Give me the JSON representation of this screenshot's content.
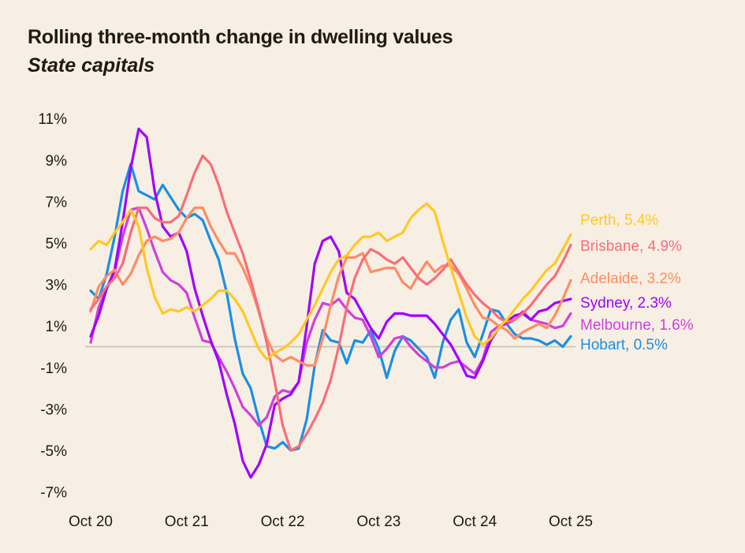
{
  "chart_data": {
    "type": "line",
    "title": "Rolling three-month change in dwelling values",
    "subtitle": "State capitals",
    "xlabel": "",
    "ylabel": "",
    "ylim": [
      -7.5,
      11.5
    ],
    "yticks": [
      11,
      9,
      7,
      5,
      3,
      1,
      -1,
      -3,
      -5,
      -7
    ],
    "ytick_labels": [
      "11%",
      "9%",
      "7%",
      "5%",
      "3%",
      "1%",
      "-1%",
      "-3%",
      "-5%",
      "-7%"
    ],
    "xticks": [
      0,
      12,
      24,
      36,
      48,
      60
    ],
    "xtick_labels": [
      "Oct 20",
      "Oct 21",
      "Oct 22",
      "Oct 23",
      "Oct 24",
      "Oct 25"
    ],
    "x_unit": "months since Oct 2020",
    "zero_line": true,
    "grid": false,
    "legend": "end-of-line labels (right)",
    "series": [
      {
        "name": "Perth",
        "end_label": "Perth, 5.4%",
        "color": "#ffc824",
        "values": [
          4.7,
          5.1,
          4.9,
          5.5,
          6.0,
          6.6,
          5.8,
          3.8,
          2.4,
          1.6,
          1.8,
          1.7,
          1.9,
          1.7,
          2.0,
          2.3,
          2.7,
          2.7,
          2.3,
          1.7,
          0.8,
          -0.1,
          -0.6,
          -0.3,
          -0.1,
          0.2,
          0.6,
          1.3,
          2.0,
          2.8,
          3.6,
          4.2,
          4.4,
          4.9,
          5.3,
          5.3,
          5.5,
          5.1,
          5.3,
          5.5,
          6.2,
          6.6,
          6.9,
          6.5,
          5.1,
          3.8,
          2.6,
          1.4,
          0.5,
          0.1,
          0.4,
          0.9,
          1.3,
          1.8,
          2.3,
          2.7,
          3.2,
          3.7,
          4.0,
          4.7,
          5.4
        ]
      },
      {
        "name": "Brisbane",
        "end_label": "Brisbane, 4.9%",
        "color": "#f96d78",
        "values": [
          1.8,
          2.3,
          2.9,
          3.3,
          4.0,
          5.5,
          6.7,
          6.7,
          6.2,
          6.0,
          6.0,
          6.3,
          7.3,
          8.4,
          9.2,
          8.8,
          7.8,
          6.5,
          5.5,
          4.5,
          3.2,
          1.8,
          0.2,
          -1.7,
          -3.8,
          -5.0,
          -4.8,
          -4.2,
          -3.5,
          -2.7,
          -1.6,
          0.0,
          1.9,
          3.3,
          4.2,
          4.7,
          4.5,
          4.2,
          4.0,
          4.3,
          3.8,
          3.3,
          3.0,
          3.3,
          3.7,
          4.2,
          3.6,
          3.0,
          2.5,
          2.1,
          1.8,
          1.4,
          1.2,
          1.3,
          1.6,
          2.0,
          2.5,
          3.0,
          3.4,
          4.1,
          4.9
        ]
      },
      {
        "name": "Adelaide",
        "end_label": "Adelaide, 3.2%",
        "color": "#ff8c64",
        "values": [
          1.7,
          2.9,
          3.4,
          3.7,
          3.0,
          3.5,
          4.4,
          5.1,
          5.3,
          5.1,
          5.2,
          5.5,
          6.2,
          6.7,
          6.7,
          5.8,
          5.1,
          4.5,
          4.5,
          3.8,
          2.9,
          1.7,
          0.4,
          -0.4,
          -0.7,
          -0.5,
          -0.7,
          -0.9,
          -0.9,
          0.4,
          2.0,
          3.4,
          4.3,
          4.3,
          4.5,
          3.6,
          3.7,
          3.8,
          3.8,
          3.1,
          2.8,
          3.5,
          4.1,
          3.6,
          3.9,
          3.9,
          3.5,
          2.8,
          2.0,
          1.4,
          1.3,
          1.0,
          0.8,
          0.4,
          0.7,
          0.9,
          1.1,
          0.9,
          1.5,
          2.3,
          3.2
        ]
      },
      {
        "name": "Sydney",
        "end_label": "Sydney, 2.3%",
        "color": "#a100ff",
        "values": [
          0.5,
          1.5,
          2.8,
          3.7,
          6.0,
          8.6,
          10.5,
          10.1,
          7.5,
          5.8,
          5.3,
          5.5,
          4.6,
          2.8,
          1.5,
          0.3,
          -0.7,
          -2.3,
          -3.7,
          -5.5,
          -6.3,
          -5.7,
          -4.7,
          -2.8,
          -2.5,
          -2.3,
          -1.7,
          1.0,
          4.0,
          5.1,
          5.3,
          4.6,
          2.6,
          2.3,
          1.6,
          0.9,
          0.4,
          1.2,
          1.6,
          1.6,
          1.5,
          1.5,
          1.5,
          1.1,
          0.6,
          0.1,
          -0.6,
          -1.4,
          -1.5,
          -0.7,
          0.3,
          0.9,
          1.2,
          1.5,
          1.6,
          1.3,
          1.7,
          1.8,
          2.1,
          2.2,
          2.3
        ]
      },
      {
        "name": "Melbourne",
        "end_label": "Melbourne, 1.6%",
        "color": "#cf40d9",
        "values": [
          0.2,
          1.9,
          2.8,
          3.6,
          5.3,
          6.6,
          6.7,
          5.7,
          4.6,
          3.6,
          3.2,
          3.0,
          2.6,
          1.4,
          0.3,
          0.2,
          -0.5,
          -1.2,
          -2.0,
          -2.9,
          -3.3,
          -3.8,
          -3.4,
          -2.4,
          -2.1,
          -2.2,
          -1.7,
          0.2,
          1.3,
          2.1,
          2.0,
          2.3,
          1.8,
          1.4,
          1.3,
          0.5,
          -0.5,
          -0.1,
          0.4,
          0.5,
          0.0,
          -0.4,
          -0.7,
          -1.0,
          -1.0,
          -0.8,
          -0.7,
          -1.0,
          -1.3,
          -0.6,
          0.7,
          1.0,
          1.1,
          1.3,
          1.7,
          1.3,
          1.2,
          1.1,
          0.9,
          1.0,
          1.6
        ]
      },
      {
        "name": "Hobart",
        "end_label": "Hobart, 0.5%",
        "color": "#1a8fe6",
        "values": [
          2.7,
          2.3,
          3.5,
          5.3,
          7.5,
          8.8,
          7.5,
          7.3,
          7.1,
          7.8,
          7.2,
          6.6,
          6.2,
          6.4,
          6.1,
          5.1,
          4.2,
          2.6,
          0.4,
          -1.3,
          -2.0,
          -3.5,
          -4.8,
          -4.9,
          -4.6,
          -5.0,
          -4.9,
          -3.5,
          -0.9,
          0.8,
          0.3,
          0.2,
          -0.8,
          0.3,
          0.2,
          0.8,
          -0.1,
          -1.5,
          -0.2,
          0.5,
          0.3,
          -0.1,
          -0.5,
          -1.5,
          0.2,
          1.3,
          1.8,
          0.2,
          -0.5,
          0.6,
          1.8,
          1.7,
          1.1,
          0.6,
          0.4,
          0.4,
          0.3,
          0.1,
          0.3,
          0.0,
          0.5
        ]
      }
    ]
  }
}
